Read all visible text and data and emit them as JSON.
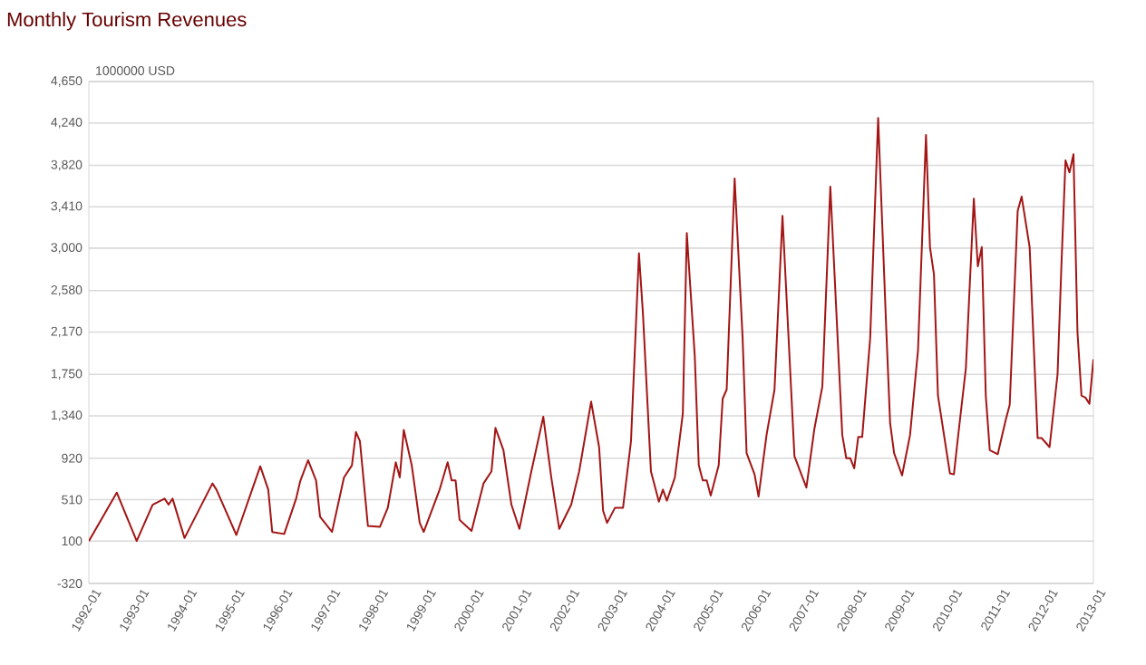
{
  "chart_data": {
    "type": "line",
    "title": "Monthly Tourism Revenues",
    "ylabel": "1000000 USD",
    "x": [
      "1992-01",
      "1992-08",
      "1993-01",
      "1993-05",
      "1993-08",
      "1993-09",
      "1993-10",
      "1994-01",
      "1994-08",
      "1994-09",
      "1995-02",
      "1995-08",
      "1995-10",
      "1995-11",
      "1996-02",
      "1996-05",
      "1996-06",
      "1996-08",
      "1996-10",
      "1996-11",
      "1997-02",
      "1997-05",
      "1997-07",
      "1997-08",
      "1997-09",
      "1997-11",
      "1998-02",
      "1998-04",
      "1998-06",
      "1998-07",
      "1998-08",
      "1998-10",
      "1998-12",
      "1999-01",
      "1999-05",
      "1999-07",
      "1999-08",
      "1999-09",
      "1999-10",
      "2000-01",
      "2000-04",
      "2000-06",
      "2000-07",
      "2000-09",
      "2000-11",
      "2001-01",
      "2001-04",
      "2001-07",
      "2001-09",
      "2001-11",
      "2002-02",
      "2002-04",
      "2002-07",
      "2002-09",
      "2002-10",
      "2002-11",
      "2003-01",
      "2003-03",
      "2003-05",
      "2003-07",
      "2003-08",
      "2003-10",
      "2003-12",
      "2004-01",
      "2004-02",
      "2004-04",
      "2004-06",
      "2004-07",
      "2004-09",
      "2004-10",
      "2004-11",
      "2004-12",
      "2005-01",
      "2005-03",
      "2005-04",
      "2005-05",
      "2005-07",
      "2005-09",
      "2005-10",
      "2005-12",
      "2006-01",
      "2006-03",
      "2006-05",
      "2006-07",
      "2006-10",
      "2007-01",
      "2007-03",
      "2007-05",
      "2007-07",
      "2007-10",
      "2007-11",
      "2007-12",
      "2008-01",
      "2008-02",
      "2008-03",
      "2008-05",
      "2008-07",
      "2008-09",
      "2008-10",
      "2008-11",
      "2009-01",
      "2009-03",
      "2009-05",
      "2009-07",
      "2009-08",
      "2009-09",
      "2009-10",
      "2010-01",
      "2010-02",
      "2010-03",
      "2010-05",
      "2010-07",
      "2010-08",
      "2010-09",
      "2010-10",
      "2010-11",
      "2011-01",
      "2011-03",
      "2011-04",
      "2011-05",
      "2011-06",
      "2011-07",
      "2011-09",
      "2011-11",
      "2011-12",
      "2012-02",
      "2012-04",
      "2012-05",
      "2012-06",
      "2012-07",
      "2012-08",
      "2012-09",
      "2012-10",
      "2012-11",
      "2012-12",
      "2013-01"
    ],
    "series": [
      {
        "color": "#a31515",
        "values": [
          100,
          580,
          100,
          460,
          520,
          460,
          520,
          130,
          670,
          610,
          160,
          840,
          610,
          190,
          170,
          520,
          690,
          900,
          700,
          340,
          190,
          730,
          850,
          1180,
          1090,
          250,
          240,
          430,
          880,
          730,
          1200,
          850,
          280,
          190,
          610,
          880,
          700,
          700,
          310,
          200,
          670,
          790,
          1220,
          1000,
          460,
          220,
          790,
          1330,
          730,
          220,
          460,
          790,
          1480,
          1030,
          400,
          280,
          430,
          430,
          1090,
          2950,
          2350,
          790,
          490,
          610,
          500,
          730,
          1360,
          3150,
          1930,
          850,
          700,
          700,
          550,
          850,
          1510,
          1600,
          3690,
          2110,
          970,
          760,
          540,
          1150,
          1600,
          3320,
          940,
          630,
          1210,
          1630,
          3610,
          1150,
          920,
          920,
          820,
          1130,
          1130,
          2110,
          4290,
          2230,
          1270,
          970,
          750,
          1150,
          1990,
          4120,
          3010,
          2740,
          1540,
          770,
          760,
          1120,
          1810,
          3490,
          2820,
          3010,
          1540,
          1000,
          960,
          1300,
          1450,
          2410,
          3370,
          3510,
          3010,
          1120,
          1120,
          1030,
          1750,
          2860,
          3870,
          3750,
          3930,
          2170,
          1540,
          1520,
          1460,
          1900
        ]
      }
    ],
    "xlim": [
      "1992-01",
      "2013-01"
    ],
    "xticks": [
      "1992-01",
      "1993-01",
      "1994-01",
      "1995-01",
      "1996-01",
      "1997-01",
      "1998-01",
      "1999-01",
      "2000-01",
      "2001-01",
      "2002-01",
      "2003-01",
      "2004-01",
      "2005-01",
      "2006-01",
      "2007-01",
      "2008-01",
      "2009-01",
      "2010-01",
      "2011-01",
      "2012-01",
      "2013-01"
    ],
    "ylim": [
      -320,
      4650
    ],
    "yticks": [
      -320,
      100,
      510,
      920,
      {
        "value": 1340,
        "label": "1,340"
      },
      {
        "value": 1750,
        "label": "1,750"
      },
      {
        "value": 2170,
        "label": "2,170"
      },
      {
        "value": 2580,
        "label": "2,580"
      },
      {
        "value": 3000,
        "label": "3,000"
      },
      {
        "value": 3410,
        "label": "3,410"
      },
      {
        "value": 3820,
        "label": "3,820"
      },
      {
        "value": 4240,
        "label": "4,240"
      },
      {
        "value": 4650,
        "label": "4,650"
      }
    ],
    "grid": "y",
    "marker": "none",
    "line_style": "solid"
  }
}
